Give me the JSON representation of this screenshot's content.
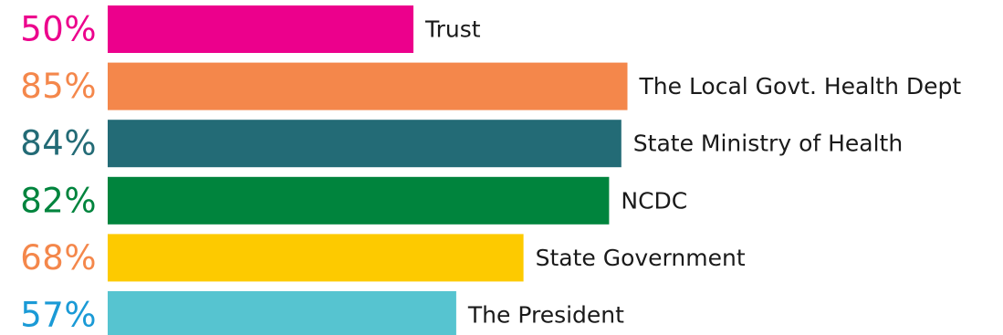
{
  "chart_data": {
    "type": "bar",
    "orientation": "horizontal",
    "categories": [
      "Trust",
      "The Local Govt. Health Dept",
      "State Ministry of Health",
      "NCDC",
      "State Government",
      "The President"
    ],
    "values": [
      50,
      85,
      84,
      82,
      68,
      57
    ],
    "value_labels": [
      "50%",
      "85%",
      "84%",
      "82%",
      "68%",
      "57%"
    ],
    "bar_colors": [
      "#ec008c",
      "#f4874b",
      "#236b76",
      "#00843d",
      "#fdca00",
      "#56c4d0"
    ],
    "label_colors": [
      "#ec008c",
      "#f4874b",
      "#236b76",
      "#00843d",
      "#f4874b",
      "#1a9ad6"
    ],
    "xlim": [
      0,
      100
    ],
    "title": "",
    "xlabel": "",
    "ylabel": "",
    "grid": false,
    "legend": "none"
  }
}
